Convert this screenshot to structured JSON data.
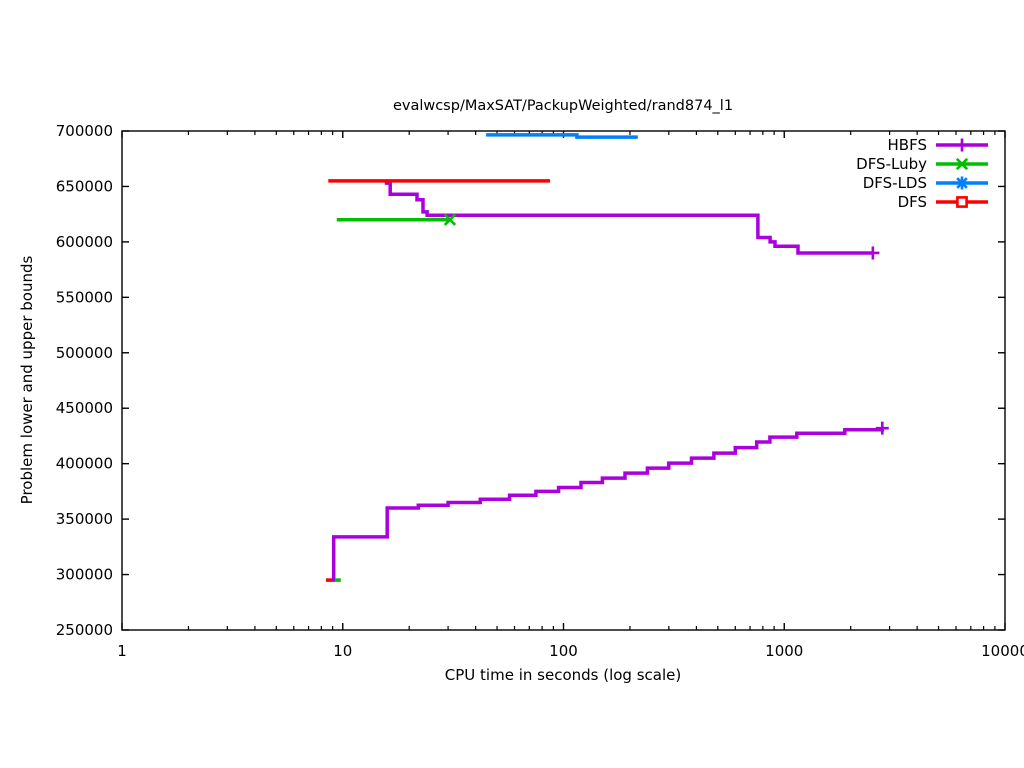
{
  "chart_data": {
    "type": "line",
    "title": "evalwcsp/MaxSAT/PackupWeighted/rand874_l1",
    "xlabel": "CPU time in seconds (log scale)",
    "ylabel": "Problem lower and upper bounds",
    "x_scale": "log10",
    "xlim": [
      1,
      10000
    ],
    "ylim": [
      250000,
      700000
    ],
    "x_ticks": [
      1,
      10,
      100,
      1000,
      10000
    ],
    "y_tick_step": 50000,
    "grid": false,
    "legend_position": "top-right-inside",
    "series": [
      {
        "name": "HBFS",
        "color": "#aa00dd",
        "marker": "plus",
        "curves": [
          {
            "role": "upper_bound",
            "end_marker": true,
            "step_points": [
              [
                15.5,
                653000
              ],
              [
                16.4,
                643000
              ],
              [
                21.7,
                638000
              ],
              [
                23.1,
                627000
              ],
              [
                24.1,
                624000
              ],
              [
                760,
                604000
              ],
              [
                863,
                600000
              ],
              [
                908,
                596000
              ],
              [
                1154,
                590000
              ],
              [
                2520,
                590000
              ]
            ]
          },
          {
            "role": "lower_bound",
            "end_marker": true,
            "step_points": [
              [
                8.8,
                295000
              ],
              [
                9.1,
                334000
              ],
              [
                15.9,
                360000
              ],
              [
                22,
                362500
              ],
              [
                30,
                365000
              ],
              [
                42,
                368000
              ],
              [
                57,
                371500
              ],
              [
                75,
                375000
              ],
              [
                95,
                378500
              ],
              [
                120,
                383000
              ],
              [
                150,
                387000
              ],
              [
                190,
                391500
              ],
              [
                240,
                396000
              ],
              [
                300,
                400500
              ],
              [
                380,
                405000
              ],
              [
                480,
                409500
              ],
              [
                600,
                414500
              ],
              [
                750,
                419500
              ],
              [
                861,
                424000
              ],
              [
                1140,
                427500
              ],
              [
                1880,
                430500
              ],
              [
                2780,
                432000
              ]
            ]
          }
        ]
      },
      {
        "name": "DFS-Luby",
        "color": "#00bf00",
        "marker": "cross",
        "curves": [
          {
            "role": "upper_bound",
            "end_marker": true,
            "step_points": [
              [
                9.4,
                620000
              ],
              [
                30.6,
                620000
              ]
            ]
          },
          {
            "role": "lower_bound",
            "end_marker": false,
            "step_points": [
              [
                9.2,
                295000
              ],
              [
                9.8,
                295000
              ]
            ]
          }
        ]
      },
      {
        "name": "DFS-LDS",
        "color": "#0080ff",
        "marker": "asterisk",
        "curves": [
          {
            "role": "upper_bound",
            "end_marker": false,
            "step_points": [
              [
                44.6,
                696500
              ],
              [
                115,
                694500
              ],
              [
                217,
                694500
              ]
            ]
          }
        ]
      },
      {
        "name": "DFS",
        "color": "#ff0000",
        "marker": "square-open",
        "curves": [
          {
            "role": "upper_bound",
            "end_marker": false,
            "step_points": [
              [
                8.6,
                655000
              ],
              [
                87,
                655000
              ]
            ]
          },
          {
            "role": "lower_bound",
            "end_marker": false,
            "step_points": [
              [
                8.4,
                295000
              ],
              [
                8.9,
                295000
              ]
            ]
          }
        ]
      }
    ]
  }
}
